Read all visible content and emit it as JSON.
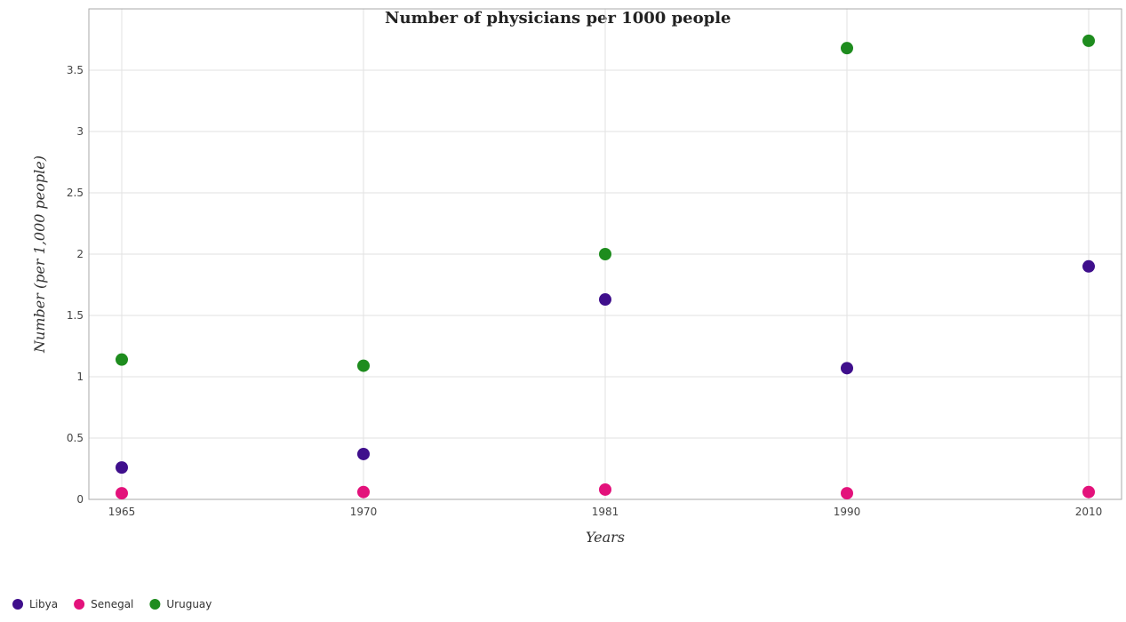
{
  "chart_data": {
    "type": "scatter",
    "title": "Number of physicians per 1000 people",
    "xlabel": "Years",
    "ylabel": "Number (per 1,000 people)",
    "categories": [
      "1965",
      "1970",
      "1981",
      "1990",
      "2010"
    ],
    "ylim": [
      0,
      4.0
    ],
    "yticks": [
      "0",
      "0.5",
      "1",
      "1.5",
      "2",
      "2.5",
      "3",
      "3.5"
    ],
    "ytick_values": [
      0,
      0.5,
      1,
      1.5,
      2,
      2.5,
      3,
      3.5
    ],
    "grid": true,
    "legend_position": "bottom-left",
    "series": [
      {
        "name": "Libya",
        "color": "#3f0f8c",
        "values": [
          0.26,
          0.37,
          1.63,
          1.07,
          1.9
        ]
      },
      {
        "name": "Senegal",
        "color": "#e3127b",
        "values": [
          0.05,
          0.06,
          0.08,
          0.05,
          0.06
        ]
      },
      {
        "name": "Uruguay",
        "color": "#1e8c1e",
        "values": [
          1.14,
          1.09,
          2.0,
          3.68,
          3.74
        ]
      }
    ]
  }
}
